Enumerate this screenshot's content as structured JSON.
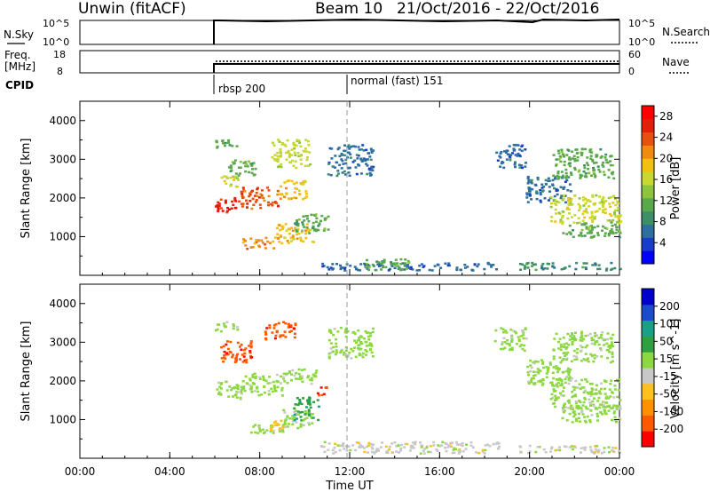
{
  "header": {
    "station": "Unwin (fitACF)",
    "beam": "Beam 10",
    "date_range": "21/Oct/2016 - 22/Oct/2016"
  },
  "summary_panels": {
    "nsky_label": "N.Sky",
    "nsky_ticks": [
      "10^5",
      "10^0"
    ],
    "nsearch_label": "N.Search",
    "nsearch_ticks": [
      "10^5",
      "10^0"
    ],
    "freq_label_line1": "Freq.",
    "freq_label_line2": "[MHz]",
    "freq_ticks": [
      "18",
      "8"
    ],
    "nave_label": "Nave",
    "nave_ticks": [
      "60",
      "0"
    ],
    "cpid_label": "CPID",
    "cpid_segments": [
      {
        "start_hour": 6.0,
        "label": "rbsp 200"
      },
      {
        "start_hour": 12.0,
        "label": "normal (fast) 151"
      }
    ]
  },
  "chart_data": [
    {
      "type": "heatmap",
      "title": "",
      "xlabel": "Time UT",
      "ylabel": "Slant Range [km]",
      "xlim": [
        0,
        24
      ],
      "ylim": [
        0,
        4500
      ],
      "x_ticks": [
        "00:00",
        "04:00",
        "08:00",
        "12:00",
        "16:00",
        "20:00",
        "00:00"
      ],
      "y_ticks": [
        1000,
        2000,
        3000,
        4000
      ],
      "colorbar": {
        "label": "Power [dB]",
        "ticks": [
          4,
          8,
          12,
          16,
          20,
          24,
          28
        ],
        "range": [
          0,
          30
        ],
        "colors": [
          "#0000ff",
          "#1a3ccc",
          "#2f6fa0",
          "#3d8f6a",
          "#59a84a",
          "#8cc43c",
          "#c8d830",
          "#f2c010",
          "#f28a10",
          "#e85010",
          "#e02008",
          "#ff0000"
        ]
      },
      "regions": [
        {
          "x": [
            6.0,
            7.1
          ],
          "y": [
            1650,
            2050
          ],
          "value": 27
        },
        {
          "x": [
            7.1,
            8.8
          ],
          "y": [
            1750,
            2300
          ],
          "value": 24
        },
        {
          "x": [
            8.8,
            10.1
          ],
          "y": [
            2000,
            2500
          ],
          "value": 19
        },
        {
          "x": [
            6.0,
            7.0
          ],
          "y": [
            2300,
            2600
          ],
          "value": 16
        },
        {
          "x": [
            6.0,
            7.0
          ],
          "y": [
            3300,
            3550
          ],
          "value": 10
        },
        {
          "x": [
            8.5,
            10.2
          ],
          "y": [
            2800,
            3550
          ],
          "value": 15
        },
        {
          "x": [
            6.4,
            7.8
          ],
          "y": [
            2600,
            3000
          ],
          "value": 12
        },
        {
          "x": [
            7.2,
            8.6
          ],
          "y": [
            700,
            1000
          ],
          "value": 22
        },
        {
          "x": [
            8.6,
            10.4
          ],
          "y": [
            850,
            1350
          ],
          "value": 18
        },
        {
          "x": [
            9.5,
            11.1
          ],
          "y": [
            1100,
            1600
          ],
          "value": 12
        },
        {
          "x": [
            11.0,
            13.0
          ],
          "y": [
            2600,
            3400
          ],
          "value": 6
        },
        {
          "x": [
            10.5,
            18.6
          ],
          "y": [
            150,
            350
          ],
          "value": 5
        },
        {
          "x": [
            12.2,
            14.6
          ],
          "y": [
            150,
            450
          ],
          "value": 11
        },
        {
          "x": [
            18.4,
            19.8
          ],
          "y": [
            2800,
            3400
          ],
          "value": 6
        },
        {
          "x": [
            19.8,
            21.8
          ],
          "y": [
            1900,
            2600
          ],
          "value": 7
        },
        {
          "x": [
            20.9,
            24.0
          ],
          "y": [
            1350,
            2100
          ],
          "value": 16
        },
        {
          "x": [
            21.4,
            24.0
          ],
          "y": [
            1000,
            1400
          ],
          "value": 12
        },
        {
          "x": [
            21.0,
            23.7
          ],
          "y": [
            2500,
            3300
          ],
          "value": 12
        },
        {
          "x": [
            19.5,
            24.0
          ],
          "y": [
            150,
            350
          ],
          "value": 9
        }
      ]
    },
    {
      "type": "heatmap",
      "title": "",
      "xlabel": "Time UT",
      "ylabel": "Slant Range [km]",
      "xlim": [
        0,
        24
      ],
      "ylim": [
        0,
        4500
      ],
      "x_ticks": [
        "00:00",
        "04:00",
        "08:00",
        "12:00",
        "16:00",
        "20:00",
        "00:00"
      ],
      "y_ticks": [
        1000,
        2000,
        3000,
        4000
      ],
      "colorbar": {
        "label": "Velocity [m s^-1]",
        "ticks": [
          -200,
          -100,
          -50,
          -15,
          15,
          50,
          100,
          200
        ],
        "range": [
          -250,
          250
        ],
        "colors": [
          "#ff0000",
          "#ff5a00",
          "#ff9000",
          "#ffc020",
          "#c8c8c8",
          "#8cd840",
          "#2fa040",
          "#1aa088",
          "#1a4ccc",
          "#0000cc"
        ]
      },
      "regions": [
        {
          "x": [
            6.0,
            7.2
          ],
          "y": [
            1550,
            2050
          ],
          "value": 0
        },
        {
          "x": [
            7.2,
            9.2
          ],
          "y": [
            1650,
            2250
          ],
          "value": 0
        },
        {
          "x": [
            9.2,
            10.5
          ],
          "y": [
            1950,
            2350
          ],
          "value": 0
        },
        {
          "x": [
            6.2,
            7.6
          ],
          "y": [
            2500,
            3100
          ],
          "value": -200
        },
        {
          "x": [
            8.2,
            9.6
          ],
          "y": [
            3100,
            3550
          ],
          "value": -200
        },
        {
          "x": [
            6.0,
            7.0
          ],
          "y": [
            3300,
            3550
          ],
          "value": 0
        },
        {
          "x": [
            10.5,
            11.0
          ],
          "y": [
            1650,
            1900
          ],
          "value": -200
        },
        {
          "x": [
            7.4,
            9.2
          ],
          "y": [
            650,
            900
          ],
          "value": 0
        },
        {
          "x": [
            8.4,
            9.0
          ],
          "y": [
            650,
            1000
          ],
          "value": -60
        },
        {
          "x": [
            9.0,
            10.3
          ],
          "y": [
            800,
            1300
          ],
          "value": 0
        },
        {
          "x": [
            9.4,
            10.6
          ],
          "y": [
            1000,
            1600
          ],
          "value": 60
        },
        {
          "x": [
            11.0,
            13.0
          ],
          "y": [
            2600,
            3400
          ],
          "value": 0
        },
        {
          "x": [
            10.5,
            18.6
          ],
          "y": [
            150,
            450
          ],
          "value": -20
        },
        {
          "x": [
            18.4,
            19.8
          ],
          "y": [
            2800,
            3400
          ],
          "value": 0
        },
        {
          "x": [
            19.8,
            21.8
          ],
          "y": [
            1900,
            2600
          ],
          "value": 0
        },
        {
          "x": [
            20.9,
            24.0
          ],
          "y": [
            1300,
            2100
          ],
          "value": 0
        },
        {
          "x": [
            21.4,
            24.0
          ],
          "y": [
            950,
            1400
          ],
          "value": 0
        },
        {
          "x": [
            21.0,
            23.7
          ],
          "y": [
            2500,
            3300
          ],
          "value": 0
        },
        {
          "x": [
            19.5,
            24.0
          ],
          "y": [
            150,
            350
          ],
          "value": -20
        }
      ]
    }
  ]
}
